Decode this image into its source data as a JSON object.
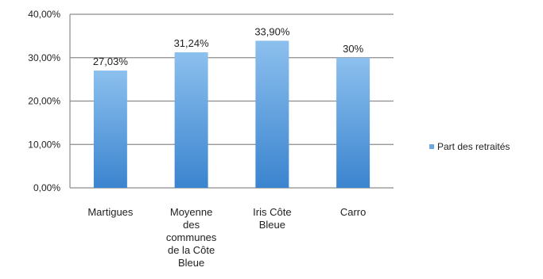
{
  "chart_data": {
    "type": "bar",
    "categories": [
      [
        "Martigues"
      ],
      [
        "Moyenne",
        "des",
        "communes",
        "de la Côte",
        "Bleue"
      ],
      [
        "Iris Côte",
        "Bleue"
      ],
      [
        "Carro"
      ]
    ],
    "series": [
      {
        "name": "Part des retraités",
        "values": [
          27.03,
          31.24,
          33.9,
          30.0
        ]
      }
    ],
    "data_labels": [
      "27,03%",
      "31,24%",
      "33,90%",
      "30%"
    ],
    "yticks": [
      "0,00%",
      "10,00%",
      "20,00%",
      "30,00%",
      "40,00%"
    ],
    "ylim": [
      0,
      40
    ],
    "grid": true,
    "legend_position": "right",
    "colors": {
      "bar_top": "#8cc0ee",
      "bar_bottom": "#3b84cf",
      "grid": "#8c8c8c",
      "axis": "#8c8c8c"
    }
  }
}
